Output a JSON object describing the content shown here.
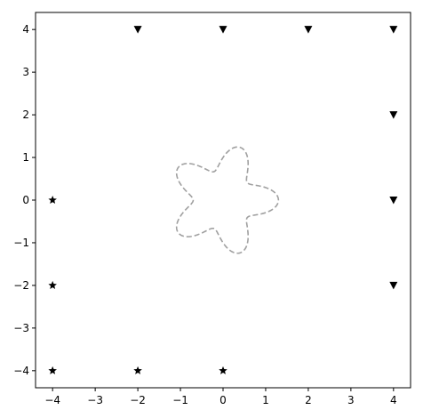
{
  "chart_data": {
    "type": "scatter",
    "title": "",
    "xlabel": "",
    "ylabel": "",
    "xlim": [
      -4.4,
      4.4
    ],
    "ylim": [
      -4.4,
      4.4
    ],
    "grid": false,
    "x_ticks": [
      "−4",
      "−3",
      "−2",
      "−1",
      "0",
      "1",
      "2",
      "3",
      "4"
    ],
    "y_ticks": [
      "−4",
      "−3",
      "−2",
      "−1",
      "0",
      "1",
      "2",
      "3",
      "4"
    ],
    "series": [
      {
        "marker": "triangle-down",
        "color": "#000000",
        "points": [
          [
            -2,
            4
          ],
          [
            0,
            4
          ],
          [
            2,
            4
          ],
          [
            4,
            4
          ],
          [
            4,
            2
          ],
          [
            4,
            0
          ],
          [
            4,
            -2
          ]
        ]
      },
      {
        "marker": "star",
        "color": "#000000",
        "points": [
          [
            -4,
            0
          ],
          [
            -4,
            -2
          ],
          [
            -4,
            -4
          ],
          [
            -2,
            -4
          ],
          [
            0,
            -4
          ]
        ]
      },
      {
        "type": "line",
        "linestyle": "dashed",
        "color": "#a0a0a0",
        "curve": "r = 1 + 0.3*cos(5*theta)"
      }
    ]
  }
}
